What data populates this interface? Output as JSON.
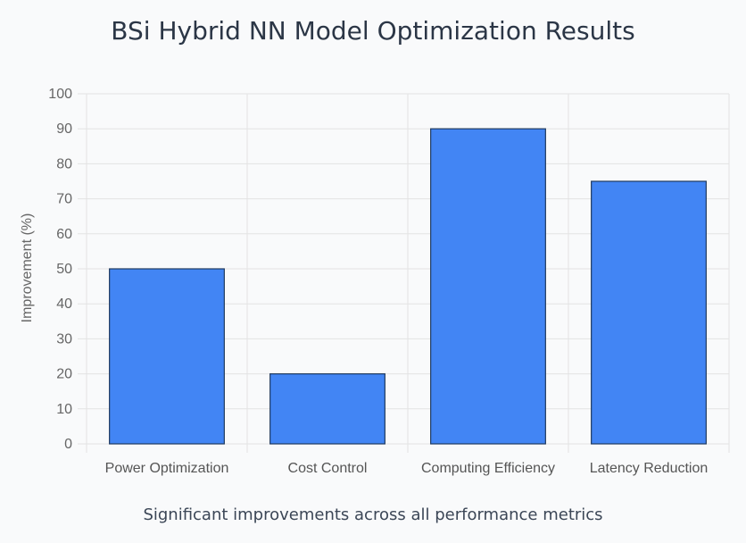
{
  "chart_data": {
    "type": "bar",
    "title": "BSi Hybrid NN Model Optimization Results",
    "subtitle": "Significant improvements across all performance metrics",
    "ylabel": "Improvement (%)",
    "xlabel": "",
    "categories": [
      "Power Optimization",
      "Cost Control",
      "Computing Efficiency",
      "Latency Reduction"
    ],
    "values": [
      50,
      20,
      90,
      75
    ],
    "ylim": [
      0,
      100
    ],
    "yticks": [
      0,
      10,
      20,
      30,
      40,
      50,
      60,
      70,
      80,
      90,
      100
    ],
    "grid": true,
    "colors": {
      "bar_fill": "#4285f4",
      "bar_stroke": "#1f3a5f",
      "grid": "#e3e3e3"
    }
  }
}
